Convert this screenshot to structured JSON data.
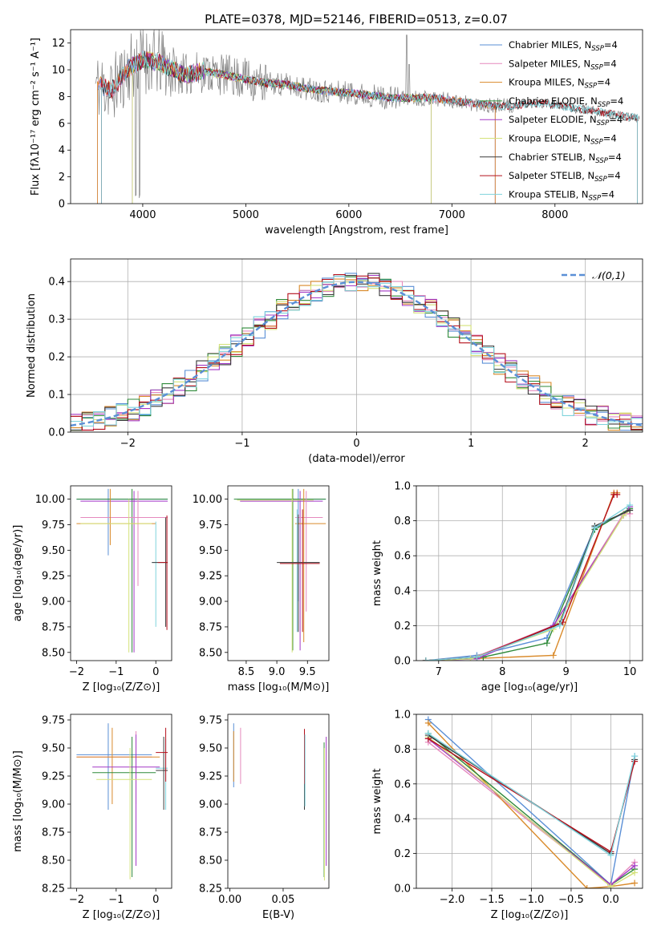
{
  "figure": {
    "title": "PLATE=0378, MJD=52146, FIBERID=0513, z=0.07"
  },
  "colors": {
    "obs": "#808080",
    "normal": "#5a8fd6"
  },
  "chart_data": [
    {
      "id": "spectrum",
      "type": "line",
      "xlabel": "wavelength [Angstrom, rest frame]",
      "ylabel": "Flux [fλ10⁻¹⁷ erg cm⁻² s⁻¹ A⁻¹]",
      "xlim": [
        3300,
        8850
      ],
      "ylim": [
        0,
        13
      ],
      "xticks": [
        4000,
        5000,
        6000,
        7000,
        8000
      ],
      "yticks": [
        0,
        2,
        4,
        6,
        8,
        10,
        12
      ],
      "legend": "top-right",
      "series": [
        {
          "name": "Chabrier MILES, N_SSP=4",
          "color": "#5a8fd6"
        },
        {
          "name": "Salpeter MILES, N_SSP=4",
          "color": "#e589bd"
        },
        {
          "name": "Kroupa MILES, N_SSP=4",
          "color": "#d98a2a"
        },
        {
          "name": "Chabrier ELODIE, N_SSP=4",
          "color": "#2f8a3a"
        },
        {
          "name": "Salpeter ELODIE, N_SSP=4",
          "color": "#a338c6"
        },
        {
          "name": "Kroupa ELODIE, N_SSP=4",
          "color": "#d4e27a"
        },
        {
          "name": "Chabrier STELIB, N_SSP=4",
          "color": "#3a3a3a"
        },
        {
          "name": "Salpeter STELIB, N_SSP=4",
          "color": "#b5101c"
        },
        {
          "name": "Kroupa STELIB, N_SSP=4",
          "color": "#7fd3dc"
        }
      ],
      "continuum": {
        "x": [
          3550,
          3700,
          3850,
          4000,
          4200,
          4400,
          4600,
          4800,
          5000,
          5200,
          5400,
          5600,
          5800,
          6000,
          6200,
          6400,
          6600,
          6800,
          7000,
          7200,
          7400,
          7600,
          7800,
          8000,
          8200,
          8400,
          8600,
          8800
        ],
        "y": [
          8.9,
          8.5,
          10.0,
          10.8,
          10.4,
          9.6,
          9.9,
          9.6,
          9.3,
          9.0,
          8.9,
          8.6,
          8.4,
          8.3,
          8.1,
          7.9,
          7.9,
          7.9,
          7.7,
          7.5,
          7.3,
          7.3,
          7.5,
          7.4,
          7.1,
          6.9,
          6.6,
          6.4
        ]
      }
    },
    {
      "id": "residuals",
      "type": "bar",
      "xlabel": "(data-model)/error",
      "ylabel": "Normed distribution",
      "xlim": [
        -2.5,
        2.5
      ],
      "ylim": [
        0,
        0.46
      ],
      "xticks": [
        -2,
        -1,
        0,
        1,
        2
      ],
      "yticks": [
        0.0,
        0.1,
        0.2,
        0.3,
        0.4
      ],
      "grid": true,
      "legend": "top-right",
      "legend_label": "𝒩(0,1)",
      "bins": [
        -2.5,
        2.5,
        50
      ]
    },
    {
      "id": "age-vs-Z",
      "type": "scatter",
      "xlabel": "Z [log₁₀(Z/Z⊙)]",
      "ylabel": "age  [log₁₀(age/yr)]",
      "xlim": [
        -2.15,
        0.4
      ],
      "ylim": [
        8.42,
        10.13
      ],
      "xticks": [
        -2,
        -1,
        0
      ],
      "yticks": [
        8.5,
        8.75,
        9.0,
        9.25,
        9.5,
        9.75,
        10.0
      ]
    },
    {
      "id": "age-vs-mass",
      "type": "scatter",
      "xlabel": "mass [log₁₀(M/M⊙)]",
      "xlim": [
        8.2,
        9.85
      ],
      "ylim": [
        8.42,
        10.13
      ],
      "xticks": [
        8.5,
        9.0,
        9.5
      ],
      "yticks": [
        8.5,
        8.75,
        9.0,
        9.25,
        9.5,
        9.75,
        10.0
      ]
    },
    {
      "id": "weight-vs-age",
      "type": "line",
      "xlabel": "age  [log₁₀(age/yr)]",
      "ylabel": "mass weight",
      "xlim": [
        6.65,
        10.2
      ],
      "ylim": [
        0,
        1.0
      ],
      "xticks": [
        7,
        8,
        9,
        10
      ],
      "yticks": [
        0.0,
        0.2,
        0.4,
        0.6,
        0.8,
        1.0
      ],
      "grid": true
    },
    {
      "id": "mass-vs-Z",
      "type": "scatter",
      "xlabel": "Z [log₁₀(Z/Z⊙)]",
      "ylabel": "mass [log₁₀(M/M⊙)]",
      "xlim": [
        -2.15,
        0.4
      ],
      "ylim": [
        8.25,
        9.8
      ],
      "xticks": [
        -2,
        -1,
        0
      ],
      "yticks": [
        8.25,
        8.5,
        8.75,
        9.0,
        9.25,
        9.5,
        9.75
      ]
    },
    {
      "id": "mass-vs-ebv",
      "type": "scatter",
      "xlabel": "E(B-V)",
      "xlim": [
        -0.002,
        0.093
      ],
      "ylim": [
        8.25,
        9.8
      ],
      "xticks": [
        0.0,
        0.05
      ],
      "yticks": [
        8.25,
        8.5,
        8.75,
        9.0,
        9.25,
        9.5,
        9.75
      ]
    },
    {
      "id": "weight-vs-Z",
      "type": "line",
      "xlabel": "Z [log₁₀(Z/Z⊙)]",
      "ylabel": "mass weight",
      "xlim": [
        -2.45,
        0.4
      ],
      "ylim": [
        0,
        1.0
      ],
      "xticks": [
        -2.0,
        -1.5,
        -1.0,
        -0.5,
        0.0
      ],
      "yticks": [
        0.0,
        0.2,
        0.4,
        0.6,
        0.8,
        1.0
      ],
      "grid": true
    }
  ]
}
